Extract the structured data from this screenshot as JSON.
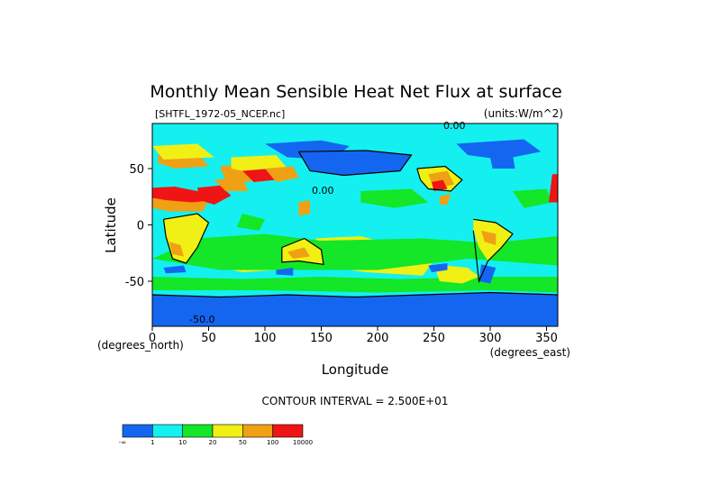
{
  "chart_data": {
    "type": "heatmap",
    "title": "Monthly Mean Sensible Heat Net Flux at surface",
    "file_label": "[SHTFL_1972-05_NCEP.nc]",
    "units_label": "(units:W/m^2)",
    "xlabel": "Longitude",
    "xunit_label": "(degrees_east)",
    "ylabel": "Latitude",
    "yunit_label": "(degrees_north)",
    "xlim": [
      0,
      360
    ],
    "ylim": [
      -90,
      90
    ],
    "xticks": [
      "0",
      "50",
      "100",
      "150",
      "200",
      "250",
      "300",
      "350"
    ],
    "yticks": [
      "50",
      "0",
      "-50"
    ],
    "contour_labels": [
      "0.00",
      "0.00",
      "-50.0"
    ],
    "contour_interval_label": "CONTOUR INTERVAL = 2.500E+01",
    "colorbar": {
      "labels": [
        "-∞",
        "1",
        "10",
        "20",
        "50",
        "100",
        "10000"
      ],
      "colors": [
        "#1466f0",
        "#14f0f0",
        "#14e628",
        "#f0f014",
        "#f0a014",
        "#f01414"
      ]
    }
  }
}
